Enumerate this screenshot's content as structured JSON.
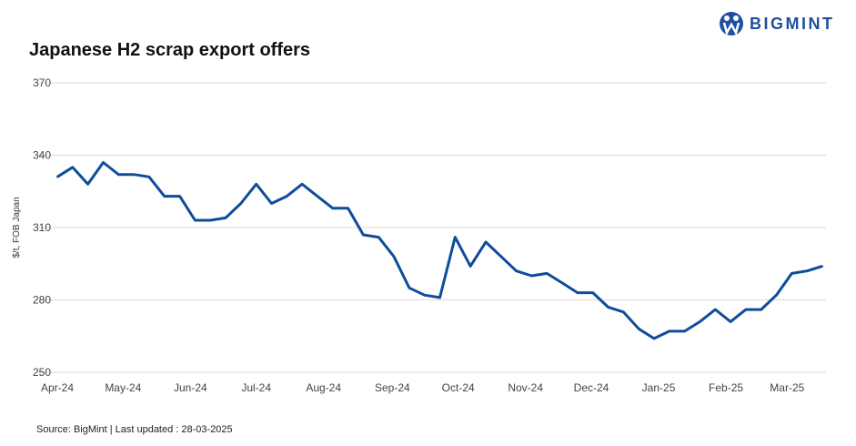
{
  "title": "Japanese H2 scrap export offers",
  "logo": {
    "text": "BIGMINT"
  },
  "source": "Source: BigMint  | Last updated : 28-03-2025",
  "chart_data": {
    "type": "line",
    "title": "Japanese H2 scrap export offers",
    "ylabel": "$/t, FOB Japan",
    "xlabel": "",
    "ylim": [
      250,
      370
    ],
    "yticks": [
      250,
      280,
      310,
      340,
      370
    ],
    "grid": true,
    "line_color": "#0f4c9c",
    "x_tick_labels": [
      {
        "label": "Apr-24",
        "index": 0
      },
      {
        "label": "May-24",
        "index": 4.3
      },
      {
        "label": "Jun-24",
        "index": 8.7
      },
      {
        "label": "Jul-24",
        "index": 13
      },
      {
        "label": "Aug-24",
        "index": 17.4
      },
      {
        "label": "Sep-24",
        "index": 21.9
      },
      {
        "label": "Oct-24",
        "index": 26.2
      },
      {
        "label": "Nov-24",
        "index": 30.6
      },
      {
        "label": "Dec-24",
        "index": 34.9
      },
      {
        "label": "Jan-25",
        "index": 39.3
      },
      {
        "label": "Feb-25",
        "index": 43.7
      },
      {
        "label": "Mar-25",
        "index": 47.7
      }
    ],
    "series": [
      {
        "name": "Japanese H2 scrap export offers",
        "values": [
          331,
          335,
          328,
          337,
          332,
          332,
          331,
          323,
          323,
          313,
          313,
          314,
          320,
          328,
          320,
          323,
          328,
          323,
          318,
          318,
          307,
          306,
          298,
          285,
          282,
          281,
          306,
          294,
          304,
          298,
          292,
          290,
          291,
          287,
          283,
          283,
          277,
          275,
          268,
          264,
          267,
          267,
          271,
          276,
          271,
          276,
          276,
          282,
          291,
          292,
          294
        ]
      }
    ]
  }
}
